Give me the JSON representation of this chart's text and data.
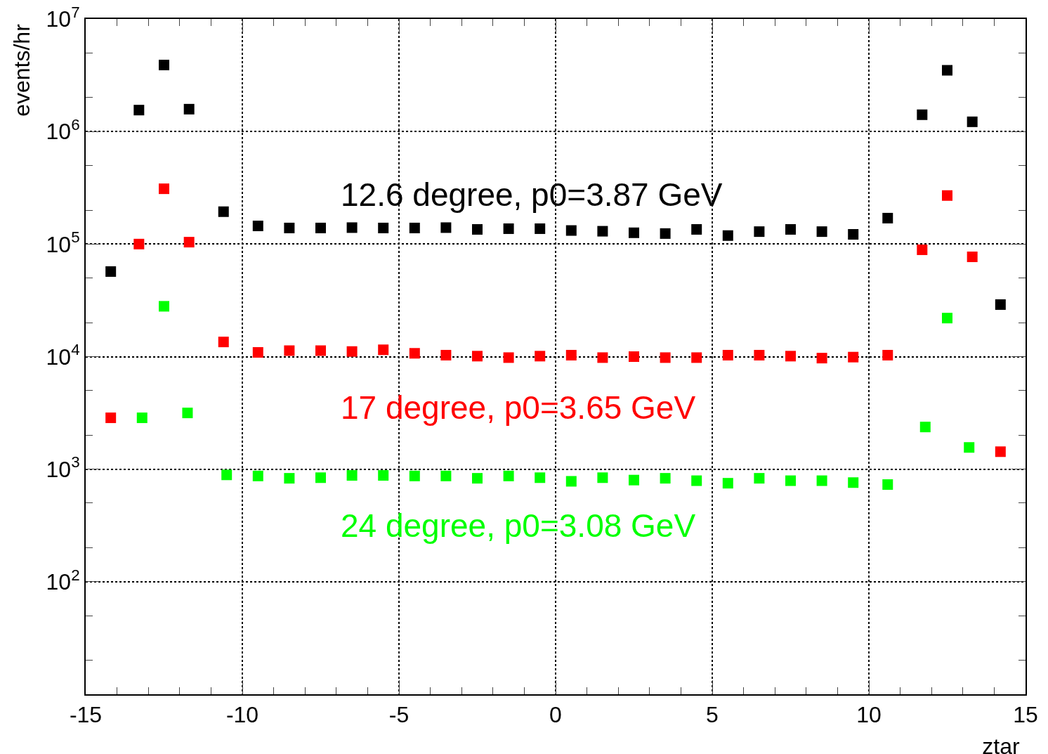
{
  "chart_data": {
    "type": "scatter",
    "xlabel": "ztar",
    "ylabel": "events/hr",
    "xlim": [
      -15,
      15
    ],
    "xticks": [
      -15,
      -10,
      -5,
      0,
      5,
      10,
      15
    ],
    "ylim": [
      10,
      10000000
    ],
    "yticks": [
      {
        "value": 10,
        "label": null
      },
      {
        "value": 100,
        "label": "10$^{2}$"
      },
      {
        "value": 1000,
        "label": "10$^{3}$"
      },
      {
        "value": 10000,
        "label": "10$^{4}$"
      },
      {
        "value": 100000,
        "label": "10$^{5}$"
      },
      {
        "value": 1000000,
        "label": "10$^{6}$"
      },
      {
        "value": 10000000,
        "label": "10$^{7}$"
      }
    ],
    "log": "y",
    "grid": true,
    "legend": false,
    "marker": "square",
    "series": [
      {
        "name": "12.6 degree, p0=3.87 GeV",
        "color": "#000000",
        "x": [
          -14.2,
          -13.3,
          -12.5,
          -11.7,
          -10.6,
          -9.5,
          -8.5,
          -7.5,
          -6.5,
          -5.5,
          -4.5,
          -3.5,
          -2.5,
          -1.5,
          -0.5,
          0.5,
          1.5,
          2.5,
          3.5,
          4.5,
          5.5,
          6.5,
          7.5,
          8.5,
          9.5,
          10.6,
          11.7,
          12.5,
          13.3,
          14.2
        ],
        "values": [
          57000,
          1550000,
          3900000,
          1580000,
          194000,
          145000,
          139000,
          139000,
          140000,
          139000,
          139000,
          140000,
          135000,
          137000,
          137000,
          132000,
          130000,
          126000,
          124000,
          135000,
          119000,
          129000,
          135000,
          129000,
          122000,
          170000,
          1410000,
          3500000,
          1220000,
          29000
        ]
      },
      {
        "name": "17 degree, p0=3.65 GeV",
        "color": "#ff0000",
        "x": [
          -14.2,
          -13.3,
          -12.5,
          -11.7,
          -10.6,
          -9.5,
          -8.5,
          -7.5,
          -6.5,
          -5.5,
          -4.5,
          -3.5,
          -2.5,
          -1.5,
          -0.5,
          0.5,
          1.5,
          2.5,
          3.5,
          4.5,
          5.5,
          6.5,
          7.5,
          8.5,
          9.5,
          10.6,
          11.7,
          12.5,
          13.3,
          14.2
        ],
        "values": [
          2860,
          100000,
          310000,
          104000,
          13500,
          10900,
          11300,
          11300,
          11100,
          11500,
          10700,
          10300,
          10100,
          9800,
          10100,
          10300,
          9800,
          10000,
          9800,
          9800,
          10300,
          10300,
          10100,
          9700,
          9900,
          10300,
          89000,
          270000,
          77000,
          1430
        ]
      },
      {
        "name": "24 degree, p0=3.08 GeV",
        "color": "#00ff00",
        "x": [
          -13.2,
          -12.5,
          -11.75,
          -10.5,
          -9.5,
          -8.5,
          -7.5,
          -6.5,
          -5.5,
          -4.5,
          -3.5,
          -2.5,
          -1.5,
          -0.5,
          0.5,
          1.5,
          2.5,
          3.5,
          4.5,
          5.5,
          6.5,
          7.5,
          8.5,
          9.5,
          10.6,
          11.8,
          12.5,
          13.2
        ],
        "values": [
          2860,
          28000,
          3160,
          890,
          870,
          830,
          840,
          880,
          880,
          870,
          870,
          830,
          870,
          840,
          780,
          840,
          800,
          830,
          790,
          750,
          830,
          790,
          790,
          760,
          730,
          2370,
          22000,
          1560
        ]
      }
    ]
  }
}
